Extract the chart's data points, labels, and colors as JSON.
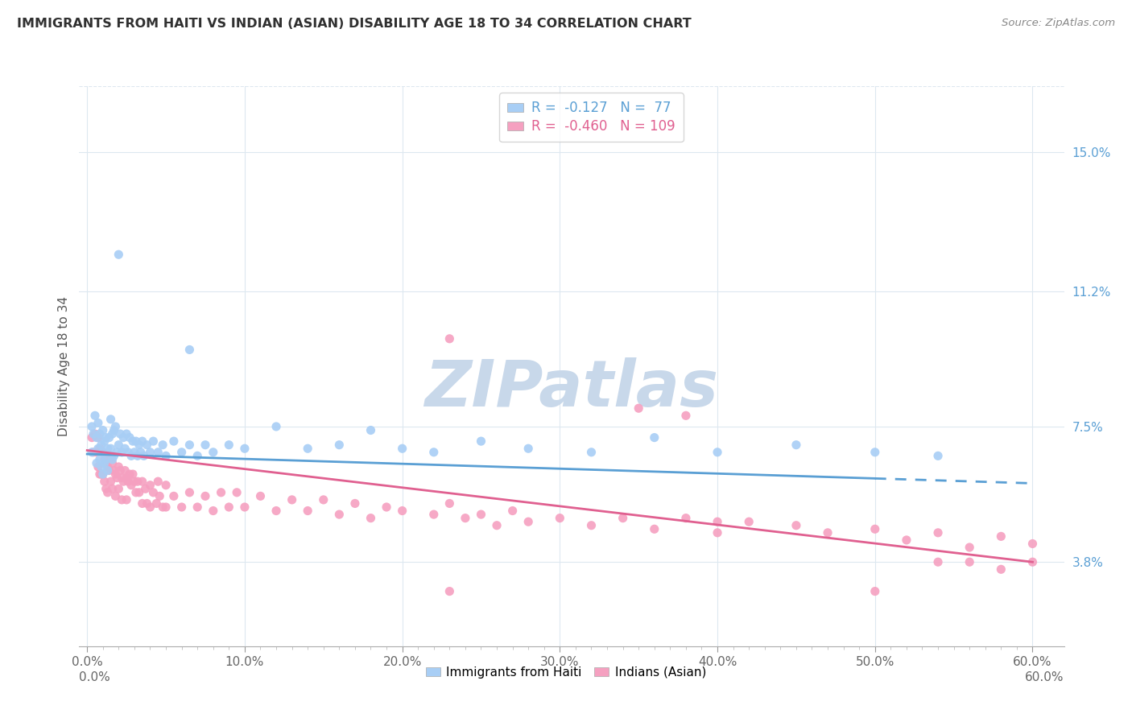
{
  "title": "IMMIGRANTS FROM HAITI VS INDIAN (ASIAN) DISABILITY AGE 18 TO 34 CORRELATION CHART",
  "source": "Source: ZipAtlas.com",
  "ylabel": "Disability Age 18 to 34",
  "legend_label_1": "Immigrants from Haiti",
  "legend_label_2": "Indians (Asian)",
  "r1": -0.127,
  "n1": 77,
  "r2": -0.46,
  "n2": 109,
  "color1": "#a8cef5",
  "color2": "#f5a0c0",
  "trendline1_color": "#5a9fd4",
  "trendline2_color": "#e06090",
  "xlim": [
    -0.005,
    0.62
  ],
  "ylim": [
    0.015,
    0.168
  ],
  "xtick_labels": [
    "0.0%",
    "",
    "",
    "",
    "",
    "",
    "",
    "",
    "",
    "",
    "10.0%",
    "",
    "",
    "",
    "",
    "",
    "",
    "",
    "",
    "",
    "20.0%",
    "",
    "",
    "",
    "",
    "",
    "",
    "",
    "",
    "",
    "30.0%",
    "",
    "",
    "",
    "",
    "",
    "",
    "",
    "",
    "",
    "40.0%",
    "",
    "",
    "",
    "",
    "",
    "",
    "",
    "",
    "",
    "50.0%",
    "",
    "",
    "",
    "",
    "",
    "",
    "",
    "",
    "",
    "60.0%"
  ],
  "xtick_values": [
    0.0,
    0.01,
    0.02,
    0.03,
    0.04,
    0.05,
    0.06,
    0.07,
    0.08,
    0.09,
    0.1,
    0.11,
    0.12,
    0.13,
    0.14,
    0.15,
    0.16,
    0.17,
    0.18,
    0.19,
    0.2,
    0.21,
    0.22,
    0.23,
    0.24,
    0.25,
    0.26,
    0.27,
    0.28,
    0.29,
    0.3,
    0.31,
    0.32,
    0.33,
    0.34,
    0.35,
    0.36,
    0.37,
    0.38,
    0.39,
    0.4,
    0.41,
    0.42,
    0.43,
    0.44,
    0.45,
    0.46,
    0.47,
    0.48,
    0.49,
    0.5,
    0.51,
    0.52,
    0.53,
    0.54,
    0.55,
    0.56,
    0.57,
    0.58,
    0.59,
    0.6
  ],
  "ytick_labels_right": [
    "3.8%",
    "7.5%",
    "11.2%",
    "15.0%"
  ],
  "ytick_values_right": [
    0.038,
    0.075,
    0.112,
    0.15
  ],
  "background_color": "#ffffff",
  "grid_color": "#dde8f0",
  "watermark": "ZIPatlas",
  "watermark_color": "#c8d8ea",
  "title_color": "#303030",
  "trendline1_solid_end": 0.5,
  "trendline1_y_start": 0.0675,
  "trendline1_y_end": 0.0595,
  "trendline2_y_start": 0.0685,
  "trendline2_y_end": 0.038,
  "scatter1_data": [
    [
      0.003,
      0.075
    ],
    [
      0.003,
      0.068
    ],
    [
      0.004,
      0.073
    ],
    [
      0.005,
      0.078
    ],
    [
      0.006,
      0.072
    ],
    [
      0.006,
      0.065
    ],
    [
      0.007,
      0.076
    ],
    [
      0.007,
      0.069
    ],
    [
      0.008,
      0.073
    ],
    [
      0.008,
      0.066
    ],
    [
      0.009,
      0.07
    ],
    [
      0.009,
      0.064
    ],
    [
      0.01,
      0.074
    ],
    [
      0.01,
      0.068
    ],
    [
      0.01,
      0.062
    ],
    [
      0.011,
      0.071
    ],
    [
      0.011,
      0.065
    ],
    [
      0.012,
      0.072
    ],
    [
      0.012,
      0.066
    ],
    [
      0.013,
      0.069
    ],
    [
      0.013,
      0.063
    ],
    [
      0.014,
      0.072
    ],
    [
      0.015,
      0.077
    ],
    [
      0.015,
      0.069
    ],
    [
      0.016,
      0.073
    ],
    [
      0.016,
      0.066
    ],
    [
      0.017,
      0.074
    ],
    [
      0.017,
      0.067
    ],
    [
      0.018,
      0.075
    ],
    [
      0.019,
      0.068
    ],
    [
      0.02,
      0.07
    ],
    [
      0.021,
      0.073
    ],
    [
      0.022,
      0.068
    ],
    [
      0.023,
      0.072
    ],
    [
      0.024,
      0.069
    ],
    [
      0.025,
      0.073
    ],
    [
      0.026,
      0.068
    ],
    [
      0.027,
      0.072
    ],
    [
      0.028,
      0.067
    ],
    [
      0.029,
      0.071
    ],
    [
      0.03,
      0.068
    ],
    [
      0.031,
      0.071
    ],
    [
      0.032,
      0.067
    ],
    [
      0.033,
      0.07
    ],
    [
      0.034,
      0.068
    ],
    [
      0.035,
      0.071
    ],
    [
      0.036,
      0.067
    ],
    [
      0.038,
      0.07
    ],
    [
      0.04,
      0.068
    ],
    [
      0.042,
      0.071
    ],
    [
      0.045,
      0.068
    ],
    [
      0.048,
      0.07
    ],
    [
      0.05,
      0.067
    ],
    [
      0.055,
      0.071
    ],
    [
      0.06,
      0.068
    ],
    [
      0.065,
      0.07
    ],
    [
      0.07,
      0.067
    ],
    [
      0.075,
      0.07
    ],
    [
      0.08,
      0.068
    ],
    [
      0.09,
      0.07
    ],
    [
      0.1,
      0.069
    ],
    [
      0.12,
      0.075
    ],
    [
      0.14,
      0.069
    ],
    [
      0.16,
      0.07
    ],
    [
      0.18,
      0.074
    ],
    [
      0.2,
      0.069
    ],
    [
      0.22,
      0.068
    ],
    [
      0.25,
      0.071
    ],
    [
      0.28,
      0.069
    ],
    [
      0.32,
      0.068
    ],
    [
      0.36,
      0.072
    ],
    [
      0.4,
      0.068
    ],
    [
      0.45,
      0.07
    ],
    [
      0.5,
      0.068
    ],
    [
      0.54,
      0.067
    ],
    [
      0.02,
      0.122
    ],
    [
      0.065,
      0.096
    ]
  ],
  "scatter2_data": [
    [
      0.003,
      0.072
    ],
    [
      0.004,
      0.068
    ],
    [
      0.005,
      0.073
    ],
    [
      0.006,
      0.068
    ],
    [
      0.007,
      0.072
    ],
    [
      0.007,
      0.064
    ],
    [
      0.008,
      0.069
    ],
    [
      0.008,
      0.062
    ],
    [
      0.009,
      0.068
    ],
    [
      0.009,
      0.062
    ],
    [
      0.01,
      0.068
    ],
    [
      0.01,
      0.062
    ],
    [
      0.011,
      0.066
    ],
    [
      0.011,
      0.06
    ],
    [
      0.012,
      0.065
    ],
    [
      0.012,
      0.058
    ],
    [
      0.013,
      0.064
    ],
    [
      0.013,
      0.057
    ],
    [
      0.014,
      0.063
    ],
    [
      0.015,
      0.067
    ],
    [
      0.015,
      0.06
    ],
    [
      0.016,
      0.065
    ],
    [
      0.016,
      0.058
    ],
    [
      0.017,
      0.063
    ],
    [
      0.018,
      0.062
    ],
    [
      0.018,
      0.056
    ],
    [
      0.019,
      0.061
    ],
    [
      0.02,
      0.064
    ],
    [
      0.02,
      0.058
    ],
    [
      0.021,
      0.063
    ],
    [
      0.022,
      0.061
    ],
    [
      0.022,
      0.055
    ],
    [
      0.023,
      0.06
    ],
    [
      0.024,
      0.063
    ],
    [
      0.025,
      0.061
    ],
    [
      0.025,
      0.055
    ],
    [
      0.026,
      0.06
    ],
    [
      0.027,
      0.062
    ],
    [
      0.028,
      0.059
    ],
    [
      0.029,
      0.062
    ],
    [
      0.03,
      0.06
    ],
    [
      0.031,
      0.057
    ],
    [
      0.032,
      0.06
    ],
    [
      0.033,
      0.057
    ],
    [
      0.035,
      0.06
    ],
    [
      0.035,
      0.054
    ],
    [
      0.037,
      0.058
    ],
    [
      0.038,
      0.054
    ],
    [
      0.04,
      0.059
    ],
    [
      0.04,
      0.053
    ],
    [
      0.042,
      0.057
    ],
    [
      0.044,
      0.054
    ],
    [
      0.045,
      0.06
    ],
    [
      0.046,
      0.056
    ],
    [
      0.048,
      0.053
    ],
    [
      0.05,
      0.059
    ],
    [
      0.05,
      0.053
    ],
    [
      0.055,
      0.056
    ],
    [
      0.06,
      0.053
    ],
    [
      0.065,
      0.057
    ],
    [
      0.07,
      0.053
    ],
    [
      0.075,
      0.056
    ],
    [
      0.08,
      0.052
    ],
    [
      0.085,
      0.057
    ],
    [
      0.09,
      0.053
    ],
    [
      0.095,
      0.057
    ],
    [
      0.1,
      0.053
    ],
    [
      0.11,
      0.056
    ],
    [
      0.12,
      0.052
    ],
    [
      0.13,
      0.055
    ],
    [
      0.14,
      0.052
    ],
    [
      0.15,
      0.055
    ],
    [
      0.16,
      0.051
    ],
    [
      0.17,
      0.054
    ],
    [
      0.18,
      0.05
    ],
    [
      0.19,
      0.053
    ],
    [
      0.2,
      0.052
    ],
    [
      0.22,
      0.051
    ],
    [
      0.23,
      0.054
    ],
    [
      0.24,
      0.05
    ],
    [
      0.25,
      0.051
    ],
    [
      0.26,
      0.048
    ],
    [
      0.27,
      0.052
    ],
    [
      0.28,
      0.049
    ],
    [
      0.3,
      0.05
    ],
    [
      0.32,
      0.048
    ],
    [
      0.34,
      0.05
    ],
    [
      0.36,
      0.047
    ],
    [
      0.38,
      0.05
    ],
    [
      0.4,
      0.049
    ],
    [
      0.4,
      0.046
    ],
    [
      0.42,
      0.049
    ],
    [
      0.45,
      0.048
    ],
    [
      0.47,
      0.046
    ],
    [
      0.5,
      0.047
    ],
    [
      0.52,
      0.044
    ],
    [
      0.54,
      0.046
    ],
    [
      0.56,
      0.042
    ],
    [
      0.58,
      0.045
    ],
    [
      0.6,
      0.043
    ],
    [
      0.23,
      0.099
    ],
    [
      0.35,
      0.08
    ],
    [
      0.38,
      0.078
    ],
    [
      0.23,
      0.03
    ],
    [
      0.5,
      0.03
    ],
    [
      0.54,
      0.038
    ],
    [
      0.56,
      0.038
    ],
    [
      0.58,
      0.036
    ],
    [
      0.6,
      0.038
    ]
  ]
}
